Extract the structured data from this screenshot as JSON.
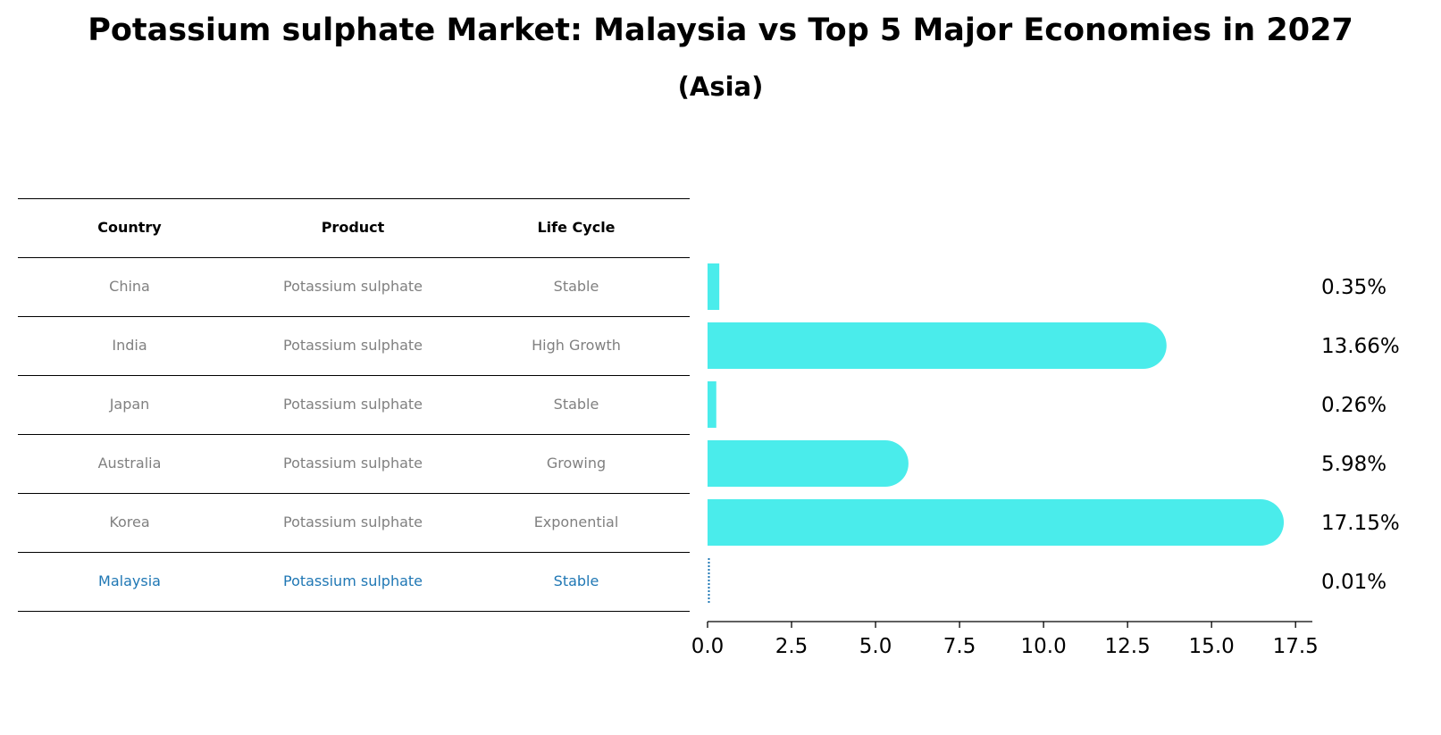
{
  "title": "Potassium sulphate Market: Malaysia vs Top 5 Major Economies in 2027",
  "subtitle": "(Asia)",
  "table": {
    "headers": [
      "Country",
      "Product",
      "Life Cycle"
    ],
    "rows": [
      {
        "country": "China",
        "product": "Potassium sulphate",
        "life_cycle": "Stable"
      },
      {
        "country": "India",
        "product": "Potassium sulphate",
        "life_cycle": "High Growth"
      },
      {
        "country": "Japan",
        "product": "Potassium sulphate",
        "life_cycle": "Stable"
      },
      {
        "country": "Australia",
        "product": "Potassium sulphate",
        "life_cycle": "Growing"
      },
      {
        "country": "Korea",
        "product": "Potassium sulphate",
        "life_cycle": "Exponential"
      },
      {
        "country": "Malaysia",
        "product": "Potassium sulphate",
        "life_cycle": "Stable"
      }
    ],
    "highlight_row": "Malaysia",
    "highlight_color": "#1f77b4"
  },
  "chart_data": {
    "type": "bar",
    "orientation": "horizontal",
    "categories": [
      "China",
      "India",
      "Japan",
      "Australia",
      "Korea",
      "Malaysia"
    ],
    "values": [
      0.35,
      13.66,
      0.26,
      5.98,
      17.15,
      0.01
    ],
    "value_labels": [
      "0.35%",
      "13.66%",
      "0.26%",
      "5.98%",
      "17.15%",
      "0.01%"
    ],
    "xlim": [
      0,
      18
    ],
    "xticks": [
      0.0,
      2.5,
      5.0,
      7.5,
      10.0,
      12.5,
      15.0,
      17.5
    ],
    "xtick_labels": [
      "0.0",
      "2.5",
      "5.0",
      "7.5",
      "10.0",
      "12.5",
      "15.0",
      "17.5"
    ],
    "bar_color": "#4aeceb",
    "highlight_bar_style": "dotted outline",
    "highlight_color": "#1f77b4",
    "grid": false,
    "xlabel": "",
    "ylabel": ""
  }
}
